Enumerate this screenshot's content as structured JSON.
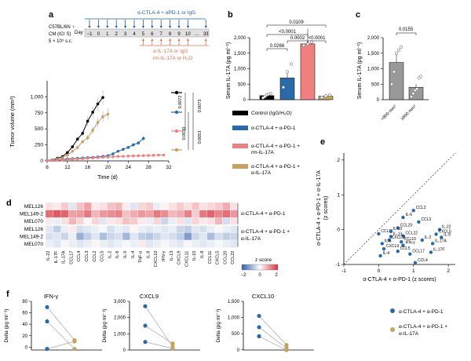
{
  "colors": {
    "black": "#000000",
    "blue": "#2a6aa8",
    "pink": "#f08080",
    "tan": "#c8a060",
    "heat_pos": "#d9303a",
    "heat_neg": "#2e5fa8",
    "timeline_blue": "#1f5f9e",
    "timeline_orange": "#e07050"
  },
  "panel_a": {
    "panel_letter": "a",
    "mouse_text": [
      "C57BL/6N ♀",
      "CM (ICI S)",
      "5 × 10⁵ s.c."
    ],
    "top_treatment": "α-CTLA-4 + αPD-1 or IgG",
    "day_label": "Day",
    "days": [
      "−1",
      "0",
      "1",
      "2",
      "3",
      "4",
      "5",
      "6",
      "7",
      "8",
      "9",
      "10",
      "...",
      "33"
    ],
    "bottom_treatment": [
      "α-IL-17A or IgG",
      "rm-IL-17A or H₂O"
    ],
    "chart_data": {
      "type": "line",
      "title": "",
      "xlabel": "Time (d)",
      "ylabel": "Tumor volume (mm³)",
      "xlim": [
        8,
        32
      ],
      "ylim": [
        0,
        1250
      ],
      "xticks": [
        8,
        12,
        16,
        20,
        24,
        28,
        32
      ],
      "yticks": [
        0,
        250,
        500,
        750,
        1000
      ],
      "ytick_labels": [
        "0",
        "250",
        "500",
        "750",
        "1,000"
      ],
      "series": [
        {
          "color": "black",
          "x": [
            8,
            9,
            10,
            11,
            12,
            13,
            14,
            15,
            16,
            17,
            18,
            19
          ],
          "y": [
            10,
            15,
            40,
            65,
            130,
            220,
            340,
            430,
            620,
            760,
            890,
            990
          ]
        },
        {
          "color": "tan",
          "x": [
            8,
            9,
            10,
            11,
            12,
            13,
            14,
            15,
            16,
            17,
            18,
            19,
            20
          ],
          "y": [
            10,
            14,
            30,
            50,
            90,
            150,
            210,
            300,
            360,
            480,
            600,
            690,
            730
          ]
        },
        {
          "color": "blue",
          "x": [
            8,
            9,
            10,
            11,
            12,
            13,
            14,
            15,
            16,
            17,
            18,
            19,
            20,
            21,
            22,
            23,
            24,
            25,
            26,
            27
          ],
          "y": [
            5,
            8,
            15,
            22,
            30,
            35,
            40,
            45,
            50,
            55,
            60,
            70,
            80,
            110,
            150,
            180,
            210,
            250,
            280,
            350
          ]
        },
        {
          "color": "pink",
          "x": [
            8,
            9,
            10,
            11,
            12,
            13,
            14,
            15,
            16,
            17,
            18,
            19,
            20,
            21,
            22,
            23,
            24,
            25,
            26,
            27,
            28,
            29,
            30,
            31
          ],
          "y": [
            5,
            6,
            10,
            15,
            20,
            25,
            30,
            35,
            40,
            45,
            50,
            55,
            60,
            65,
            70,
            72,
            75,
            78,
            80,
            82,
            85,
            88,
            90,
            92
          ]
        }
      ],
      "legend": {
        "placement": "right",
        "order": [
          "black",
          "blue",
          "pink",
          "tan"
        ]
      },
      "annotations": {
        "pvalues": [
          "0.0072",
          "0.0030",
          "0.0073",
          "0.0053"
        ]
      }
    }
  },
  "panel_b": {
    "panel_letter": "b",
    "chart_data": {
      "type": "bar",
      "ylabel": "Serum IL-17A (pg ml⁻¹)",
      "ylim": [
        0,
        2000
      ],
      "yticks": [
        0,
        500,
        1000,
        1500,
        2000
      ],
      "ytick_labels": [
        "0",
        "500",
        "1,000",
        "1,500",
        "2,000"
      ],
      "bars": [
        {
          "color": "black",
          "value": 130,
          "points": [
            60,
            100,
            150,
            180,
            200
          ]
        },
        {
          "color": "blue",
          "value": 700,
          "points": [
            400,
            900,
            1150
          ]
        },
        {
          "color": "pink",
          "value": 1800,
          "points": [
            1750,
            1800,
            1860
          ]
        },
        {
          "color": "tan",
          "value": 110,
          "points": [
            70,
            120,
            150
          ]
        }
      ],
      "comparisons": [
        {
          "a": 0,
          "b": 1,
          "p": "0.0266"
        },
        {
          "a": 1,
          "b": 2,
          "p": "0.0002"
        },
        {
          "a": 0,
          "b": 2,
          "p": "<0.0001"
        },
        {
          "a": 2,
          "b": 3,
          "p": "<0.0001"
        },
        {
          "a": 0,
          "b": 3,
          "p": "0.0109"
        }
      ]
    }
  },
  "panel_c": {
    "panel_letter": "c",
    "chart_data": {
      "type": "bar",
      "ylabel": "Serum IL-17A (pg ml⁻¹)",
      "ylim": [
        0,
        2000
      ],
      "yticks": [
        0,
        500,
        1000,
        1500,
        2000
      ],
      "ytick_labels": [
        "0",
        "500",
        "1,000",
        "1,500",
        "2,000"
      ],
      "categories": [
        "<800 mm³",
        "≥800 mm³"
      ],
      "values": [
        1200,
        400
      ],
      "points": [
        [
          500,
          900,
          1500,
          1600,
          1700
        ],
        [
          100,
          200,
          300,
          350,
          700,
          750
        ]
      ],
      "pvalue": "0.0155"
    }
  },
  "legend_mid": {
    "items": [
      {
        "color": "black",
        "label": "Control (IgG/H₂O)"
      },
      {
        "color": "blue",
        "label": "α-CTLA-4 + α-PD-1"
      },
      {
        "color": "pink",
        "label": "α-CTLA-4 + α-PD-1 + rm-IL-17A"
      },
      {
        "color": "tan",
        "label": "α-CTLA-4 + α-PD-1 + α-IL-17A"
      }
    ]
  },
  "panel_d": {
    "panel_letter": "d",
    "chart_data": {
      "type": "heatmap",
      "rows": [
        "MEL126",
        "MEL149-2",
        "MEL070",
        "MEL126",
        "MEL149-2",
        "MEL070"
      ],
      "columns": [
        "IL-22",
        "IL-17F",
        "IL-17A",
        "CCL17",
        "CCL4",
        "CCL3",
        "CCL2",
        "CCL5",
        "IL-2",
        "IL-6",
        "IL-5",
        "IL-4",
        "TNF-α",
        "IL-9",
        "CXCL10",
        "IFN-γ",
        "IL-13",
        "CXCL9",
        "CXCL11",
        "IL-10",
        "IL-8",
        "CCL11",
        "CXCL5",
        "CCL20",
        "CCL22"
      ],
      "values": [
        [
          0.3,
          0.2,
          0.5,
          -0.3,
          0.6,
          0.9,
          0.2,
          0.3,
          0.6,
          0.7,
          0.2,
          -0.3,
          0.4,
          0.5,
          -0.2,
          0.1,
          0.3,
          0.5,
          0.3,
          0.6,
          0.3,
          0.4,
          0.5,
          0.8,
          0.3
        ],
        [
          1.4,
          1.6,
          1.5,
          0.9,
          1.0,
          1.3,
          0.7,
          1.0,
          1.1,
          1.2,
          0.6,
          0.8,
          1.0,
          0.9,
          1.3,
          1.1,
          0.7,
          0.8,
          1.2,
          0.5,
          1.3,
          1.5,
          1.2,
          1.4,
          1.0
        ],
        [
          0.2,
          -0.2,
          0.3,
          0.7,
          0.4,
          0.1,
          0.4,
          -0.3,
          0.2,
          0.3,
          0.6,
          0.5,
          0.2,
          -0.2,
          0.4,
          -0.5,
          -0.2,
          0.3,
          -0.3,
          0.4,
          0.2,
          0.3,
          0.7,
          -0.4,
          0.3
        ],
        [
          -0.3,
          -0.6,
          -0.2,
          0.2,
          -0.4,
          -0.3,
          -0.2,
          -0.1,
          -0.4,
          -0.2,
          -0.3,
          0.1,
          -0.2,
          -0.3,
          -0.2,
          -0.3,
          -0.2,
          -0.5,
          -0.6,
          -0.3,
          -0.4,
          -0.2,
          -0.1,
          -0.2,
          -0.3
        ],
        [
          -0.4,
          -0.3,
          -0.5,
          -0.2,
          -1.0,
          -0.6,
          -0.3,
          -0.8,
          -0.5,
          -0.4,
          -0.9,
          -0.3,
          -0.6,
          -0.7,
          -0.5,
          -0.3,
          -0.4,
          -0.6,
          -1.2,
          -0.5,
          -0.3,
          -0.8,
          -0.4,
          -0.6,
          -0.5
        ],
        [
          -0.2,
          -0.3,
          -0.1,
          -0.2,
          -0.3,
          -0.2,
          0.1,
          -0.2,
          -0.3,
          -0.2,
          -0.1,
          -0.2,
          0.2,
          -0.3,
          -0.2,
          -0.1,
          -0.2,
          -0.3,
          -0.1,
          -0.2,
          -0.3,
          -0.2,
          -0.1,
          -0.2,
          -0.3
        ]
      ],
      "group_labels": [
        {
          "rows": [
            0,
            2
          ],
          "text": "α-CTLA-4 + α-PD-1"
        },
        {
          "rows": [
            3,
            5
          ],
          "text": [
            "α-CTLA-4 + α-PD-1 +",
            "α-IL-17A"
          ]
        }
      ],
      "colorbar": {
        "title": "z score",
        "ticks": [
          "−2",
          "0",
          "2"
        ],
        "range": [
          -2,
          2
        ]
      }
    }
  },
  "panel_e": {
    "panel_letter": "e",
    "chart_data": {
      "type": "scatter",
      "xlabel": "α-CTLA-4 + α-PD-1 (z scores)",
      "ylabel": [
        "α-CTLA-4 + α-PD-1 + α-IL-17A",
        "(z scores)"
      ],
      "xlim": [
        -1,
        2.2
      ],
      "ylim": [
        -1,
        2.2
      ],
      "xticks": [
        -1,
        0,
        1,
        2
      ],
      "yticks": [
        -1,
        0,
        1,
        2
      ],
      "points": [
        {
          "label": "CCL2",
          "x": 1.0,
          "y": 0.55
        },
        {
          "label": "IL-6",
          "x": 0.7,
          "y": 0.35
        },
        {
          "label": "CCL3",
          "x": 1.15,
          "y": 0.22
        },
        {
          "label": "CCL20",
          "x": 0.55,
          "y": 0.05
        },
        {
          "label": "IL-22",
          "x": 1.75,
          "y": 0.0
        },
        {
          "label": "CCL11",
          "x": 0.0,
          "y": -0.12
        },
        {
          "label": "IL-10",
          "x": 0.35,
          "y": -0.05
        },
        {
          "label": "CCL22",
          "x": 0.7,
          "y": -0.18
        },
        {
          "label": "CXCL5",
          "x": 1.65,
          "y": -0.13
        },
        {
          "label": "IL-9",
          "x": 1.8,
          "y": -0.22
        },
        {
          "label": "IL-13",
          "x": 0.35,
          "y": -0.2
        },
        {
          "label": "CXCL11",
          "x": 0.3,
          "y": -0.3
        },
        {
          "label": "CCL10",
          "x": 0.65,
          "y": -0.35
        },
        {
          "label": "IL-2",
          "x": 1.25,
          "y": -0.3
        },
        {
          "label": "IL-5",
          "x": 0.1,
          "y": -0.4
        },
        {
          "label": "IFN-γ",
          "x": 0.7,
          "y": -0.45
        },
        {
          "label": "IL-17A",
          "x": 1.55,
          "y": -0.4
        },
        {
          "label": "CXCL9",
          "x": 0.15,
          "y": -0.55
        },
        {
          "label": "CCL5",
          "x": 0.55,
          "y": -0.62
        },
        {
          "label": "CCL17",
          "x": 0.9,
          "y": -0.7
        },
        {
          "label": "IL-17F",
          "x": 1.5,
          "y": -0.65
        },
        {
          "label": "IL-4",
          "x": 0.05,
          "y": -0.75
        },
        {
          "label": "CCL4",
          "x": 1.05,
          "y": -0.95
        }
      ]
    }
  },
  "panel_f": {
    "panel_letter": "f",
    "chart_data": [
      {
        "type": "line",
        "title": "IFN-γ",
        "ylabel": "Delta (pg ml⁻¹)",
        "ylim": [
          -5,
          80
        ],
        "yticks": [
          0,
          20,
          40,
          60,
          80
        ],
        "pairs": [
          [
            70,
            12
          ],
          [
            45,
            -3
          ],
          [
            -3,
            10
          ]
        ]
      },
      {
        "type": "line",
        "title": "CXCL9",
        "ylabel": "Delta (pg ml⁻¹)",
        "ylim": [
          0,
          3000
        ],
        "yticks": [
          0,
          1000,
          2000,
          3000
        ],
        "ytick_labels": [
          "0",
          "1,000",
          "2,000",
          "3,000"
        ],
        "pairs": [
          [
            2700,
            200
          ],
          [
            1500,
            400
          ],
          [
            500,
            100
          ]
        ]
      },
      {
        "type": "line",
        "title": "CXCL10",
        "ylabel": "Delta (pg ml⁻¹)",
        "ylim": [
          -5,
          1500
        ],
        "yticks": [
          0,
          500,
          1000,
          1500
        ],
        "ytick_labels": [
          "0",
          "500",
          "1,000",
          "1,500"
        ],
        "pairs": [
          [
            1050,
            150
          ],
          [
            700,
            50
          ],
          [
            420,
            -10
          ]
        ]
      }
    ],
    "legend": [
      {
        "color": "blue",
        "label": "α-CTLA-4 + α-PD-1"
      },
      {
        "color": "tan",
        "label": [
          "α-CTLA-4 + α-PD-1 +",
          "α-IL-17A"
        ]
      }
    ]
  }
}
